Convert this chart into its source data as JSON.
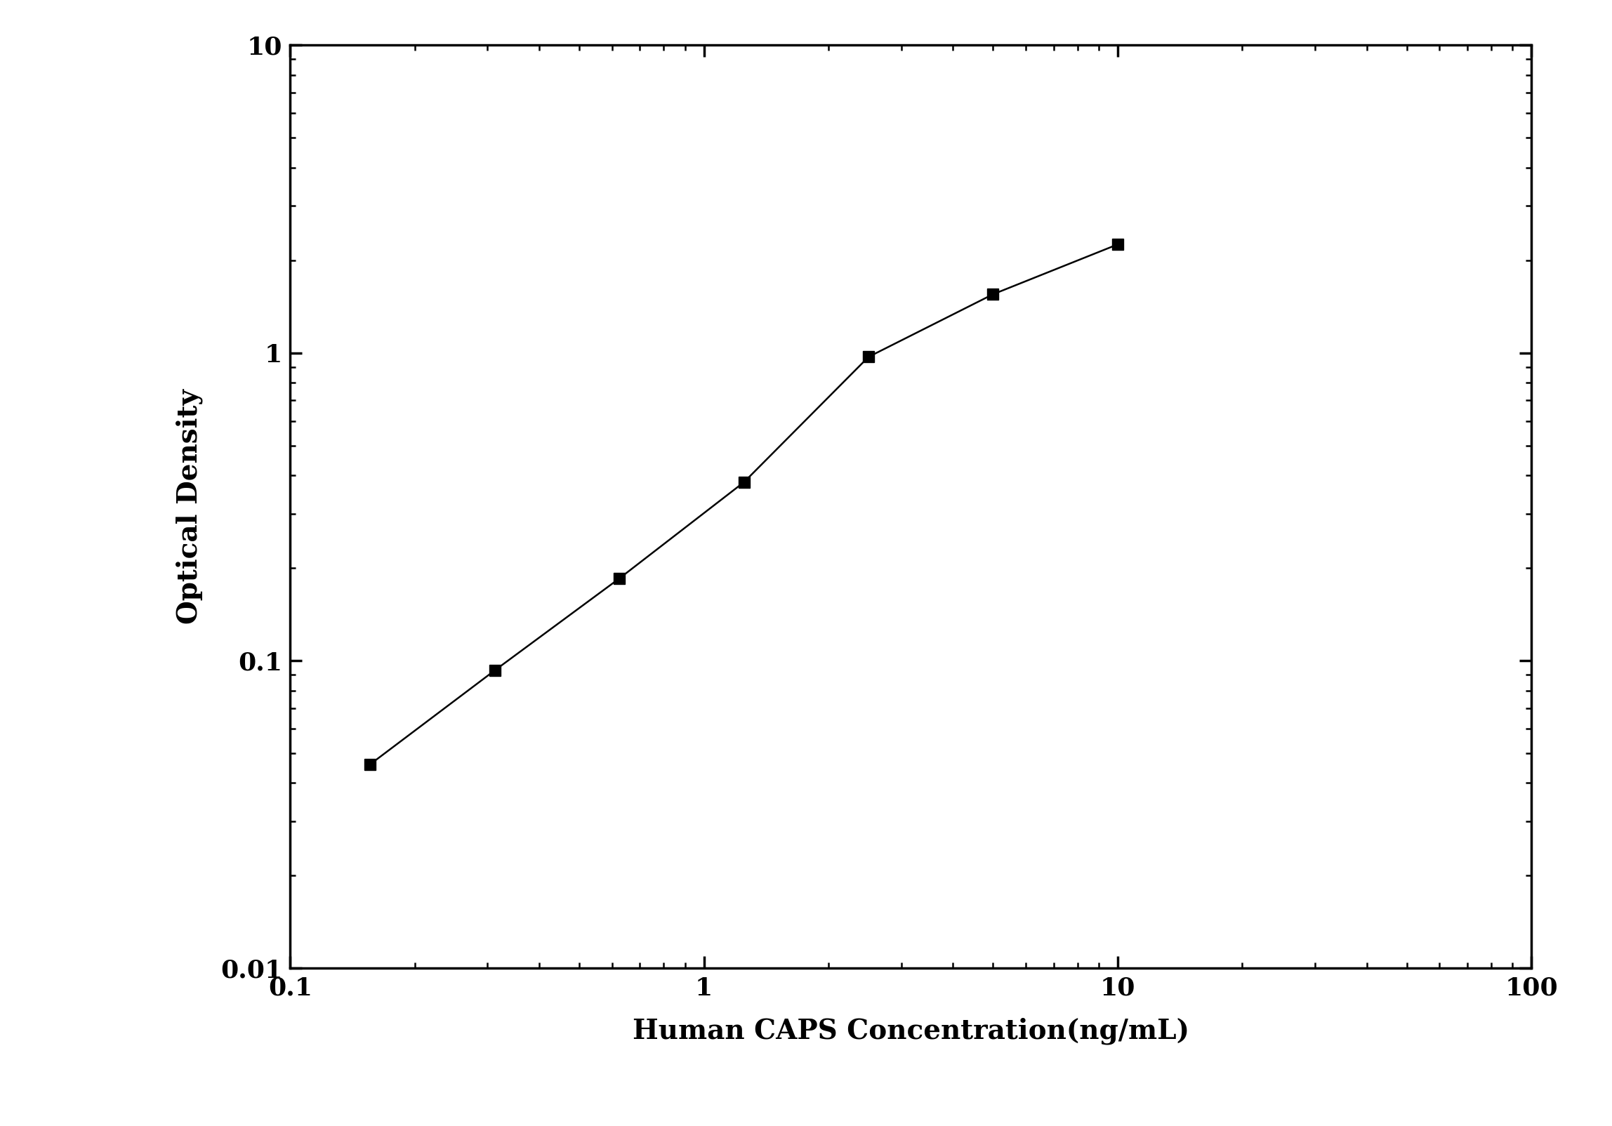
{
  "x": [
    0.156,
    0.3125,
    0.625,
    1.25,
    2.5,
    5.0,
    10.0
  ],
  "y": [
    0.046,
    0.093,
    0.185,
    0.38,
    0.97,
    1.55,
    2.25
  ],
  "xlabel": "Human CAPS Concentration(ng/mL)",
  "ylabel": "Optical Density",
  "xlim": [
    0.1,
    100
  ],
  "ylim": [
    0.01,
    10
  ],
  "line_color": "#000000",
  "marker": "s",
  "marker_color": "#000000",
  "marker_size": 12,
  "line_width": 1.8,
  "background_color": "#ffffff",
  "xlabel_fontsize": 28,
  "ylabel_fontsize": 28,
  "tick_fontsize": 26,
  "spine_linewidth": 2.5,
  "ytick_labels": [
    "0.01",
    "0.1",
    "1",
    "10"
  ],
  "xtick_labels": [
    "0.1",
    "1",
    "10",
    "100"
  ]
}
